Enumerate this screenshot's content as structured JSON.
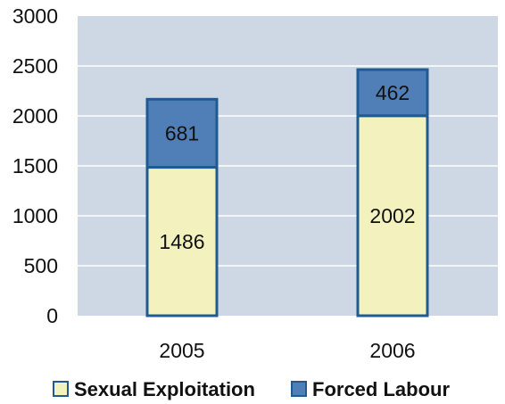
{
  "chart_data": {
    "type": "bar",
    "stacked": true,
    "categories": [
      "2005",
      "2006"
    ],
    "series": [
      {
        "name": "Sexual Exploitation",
        "values": [
          1486,
          2002
        ],
        "color": "#f3f1bd"
      },
      {
        "name": "Forced Labour",
        "values": [
          681,
          462
        ],
        "color": "#4f7fb6"
      }
    ],
    "ylim": [
      0,
      3000
    ],
    "yticks": [
      "0",
      "500",
      "1000",
      "1500",
      "2000",
      "2500",
      "3000"
    ],
    "grid": true,
    "legend_position": "bottom",
    "plot_background": "#cdd8e4",
    "grid_color": "#ffffff",
    "bar_stroke": "#1f5a92"
  }
}
